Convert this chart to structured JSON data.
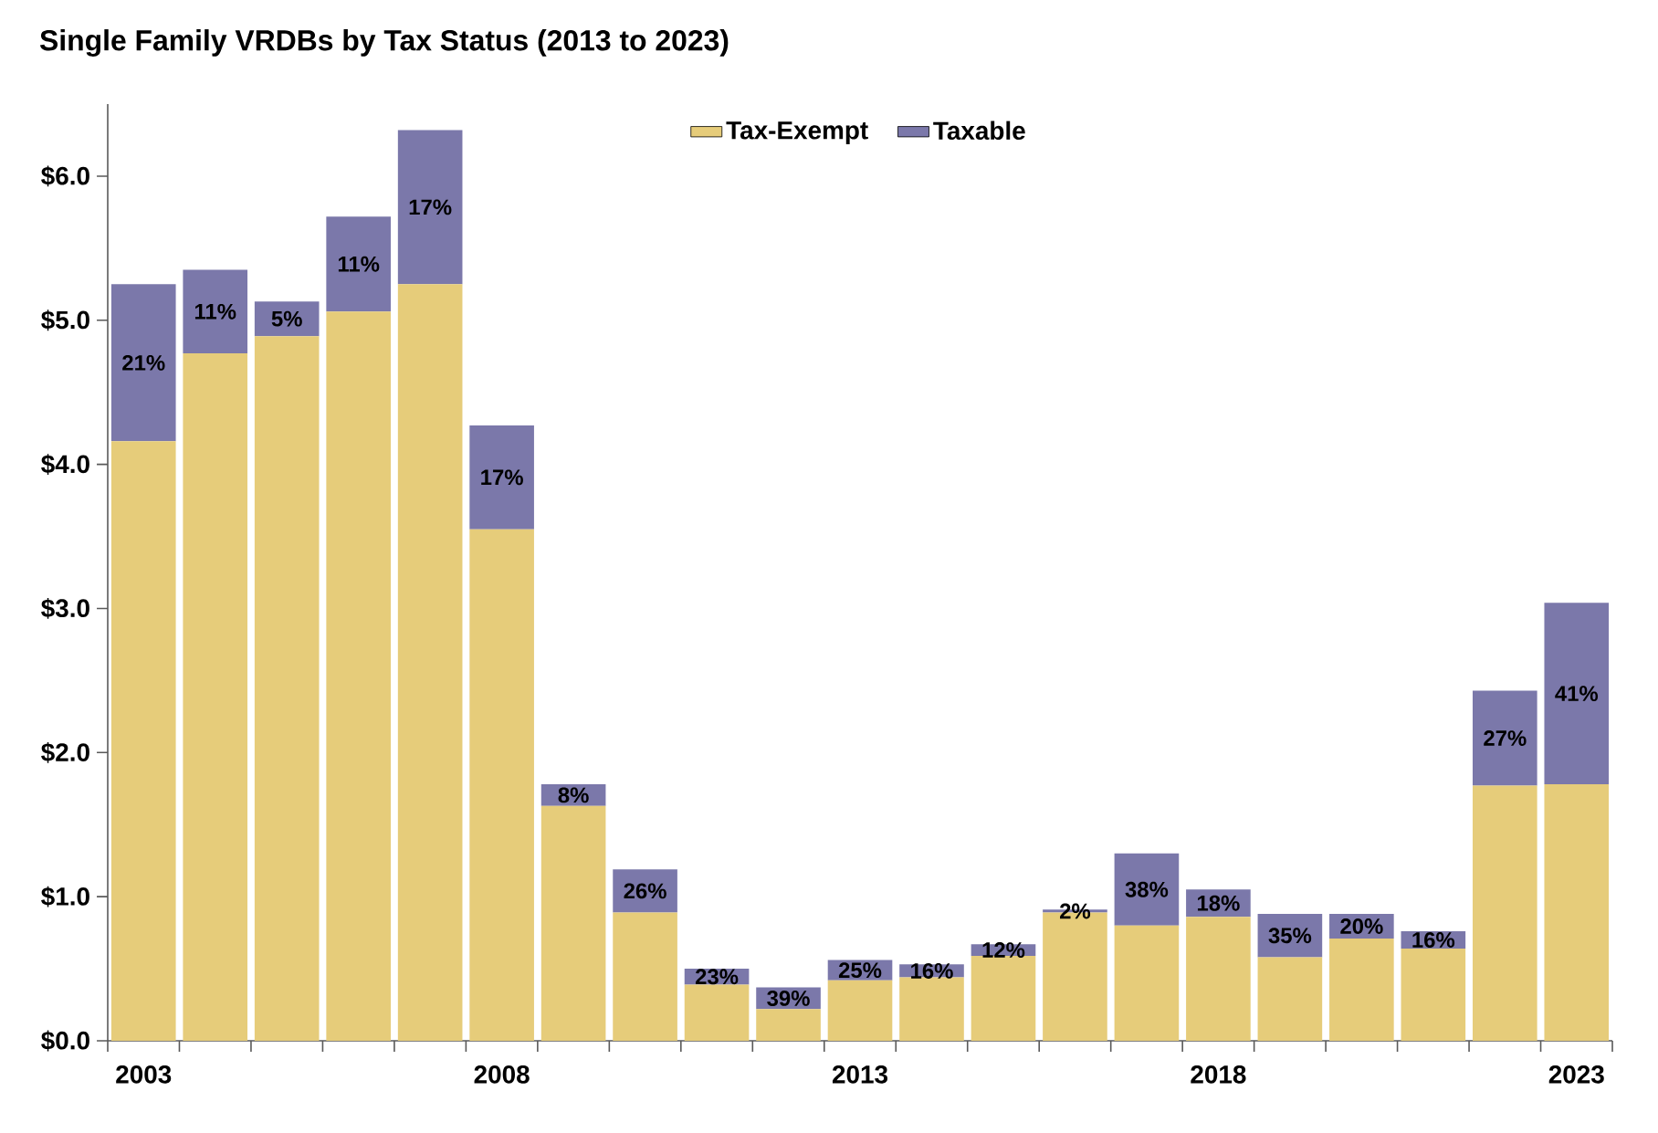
{
  "chart_data": {
    "type": "bar",
    "title": "Single Family VRDBs by Tax Status (2013 to 2023)",
    "stacked": true,
    "legend": "top",
    "categories": [
      "2003",
      null,
      null,
      null,
      null,
      "2008",
      null,
      null,
      null,
      null,
      "2013",
      null,
      null,
      null,
      null,
      "2018",
      null,
      null,
      null,
      null,
      "2023"
    ],
    "series": [
      {
        "name": "Tax-Exempt",
        "color": "#e6cc7a",
        "values": [
          4.16,
          4.77,
          4.89,
          5.06,
          5.25,
          3.55,
          1.63,
          0.89,
          0.39,
          0.22,
          0.42,
          0.44,
          0.59,
          0.89,
          0.8,
          0.86,
          0.58,
          0.71,
          0.64,
          1.77,
          1.78
        ]
      },
      {
        "name": "Taxable",
        "color": "#7b78aa",
        "values": [
          1.09,
          0.58,
          0.24,
          0.66,
          1.07,
          0.72,
          0.15,
          0.3,
          0.11,
          0.15,
          0.14,
          0.09,
          0.08,
          0.02,
          0.5,
          0.19,
          0.3,
          0.17,
          0.12,
          0.66,
          1.26
        ]
      }
    ],
    "annotations": [
      "21%",
      "11%",
      "5%",
      "11%",
      "17%",
      "17%",
      "8%",
      "26%",
      "23%",
      "39%",
      "25%",
      "16%",
      "12%",
      "2%",
      "38%",
      "18%",
      "35%",
      "20%",
      "16%",
      "27%",
      "41%"
    ],
    "ylim": [
      0,
      6.5
    ],
    "yticks": [
      {
        "value": 0,
        "label": "$0.0"
      },
      {
        "value": 1,
        "label": "$1.0"
      },
      {
        "value": 2,
        "label": "$2.0"
      },
      {
        "value": 3,
        "label": "$3.0"
      },
      {
        "value": 4,
        "label": "$4.0"
      },
      {
        "value": 5,
        "label": "$5.0"
      },
      {
        "value": 6,
        "label": "$6.0"
      }
    ]
  }
}
